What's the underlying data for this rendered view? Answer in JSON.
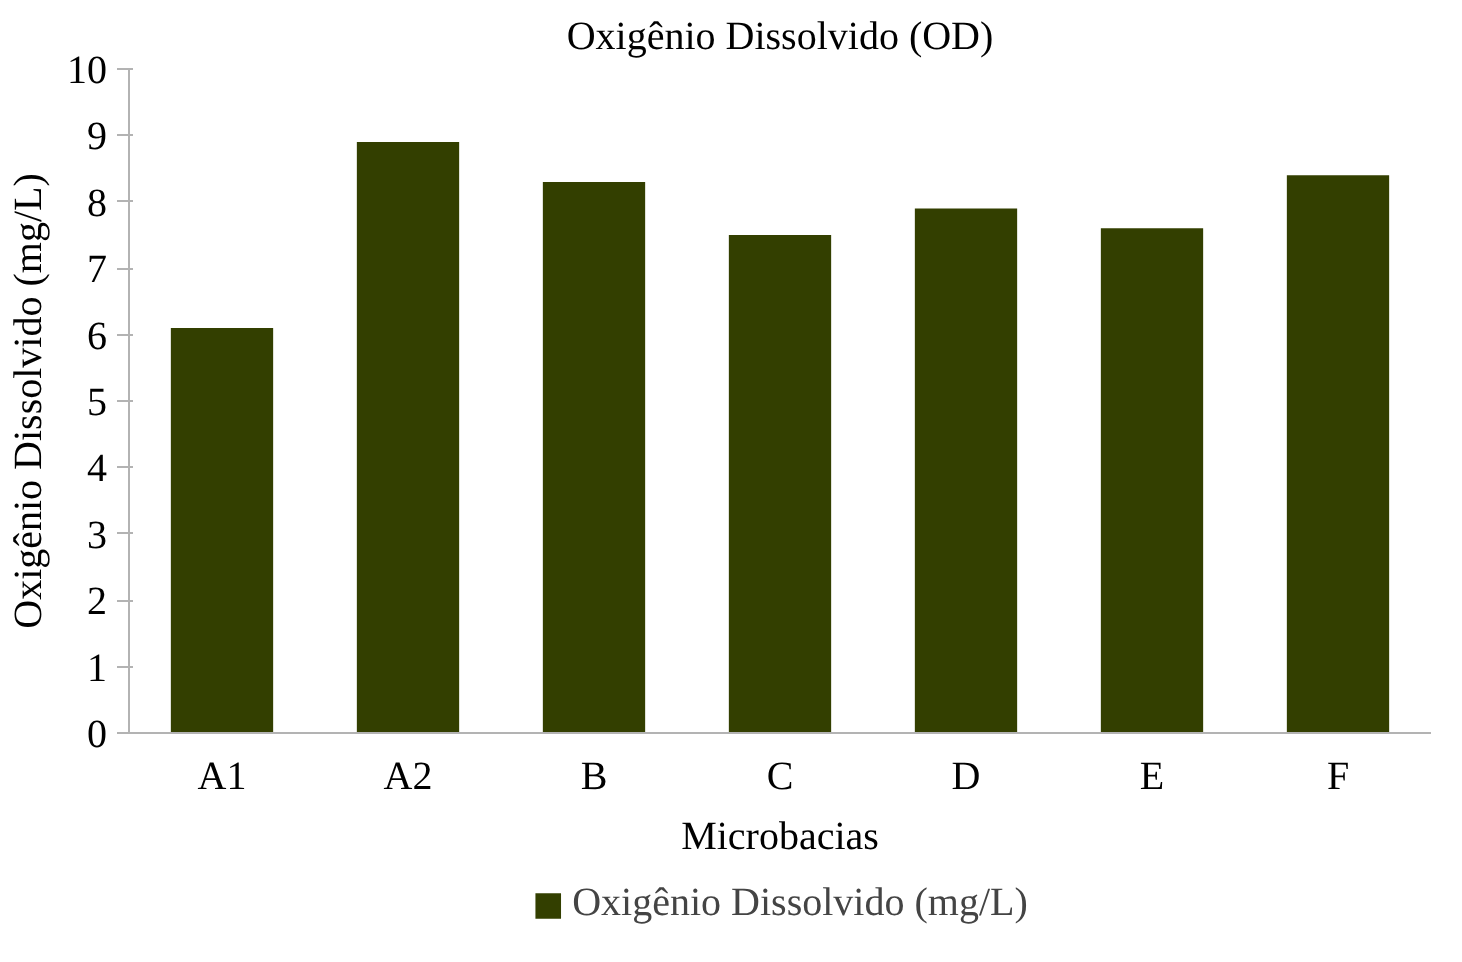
{
  "chart_data": {
    "type": "bar",
    "title": "Oxigênio Dissolvido (OD)",
    "xlabel": "Microbacias",
    "ylabel": "Oxigênio Dissolvido (mg/L)",
    "categories": [
      "A1",
      "A2",
      "B",
      "C",
      "D",
      "E",
      "F"
    ],
    "series": [
      {
        "name": "Oxigênio Dissolvido (mg/L)",
        "color": "#333f00",
        "values": [
          6.1,
          8.9,
          8.3,
          7.5,
          7.9,
          7.6,
          8.4
        ]
      }
    ],
    "ylim": [
      0,
      10
    ],
    "yticks": [
      0,
      1,
      2,
      3,
      4,
      5,
      6,
      7,
      8,
      9,
      10
    ],
    "grid": false,
    "legend": "bottom"
  }
}
